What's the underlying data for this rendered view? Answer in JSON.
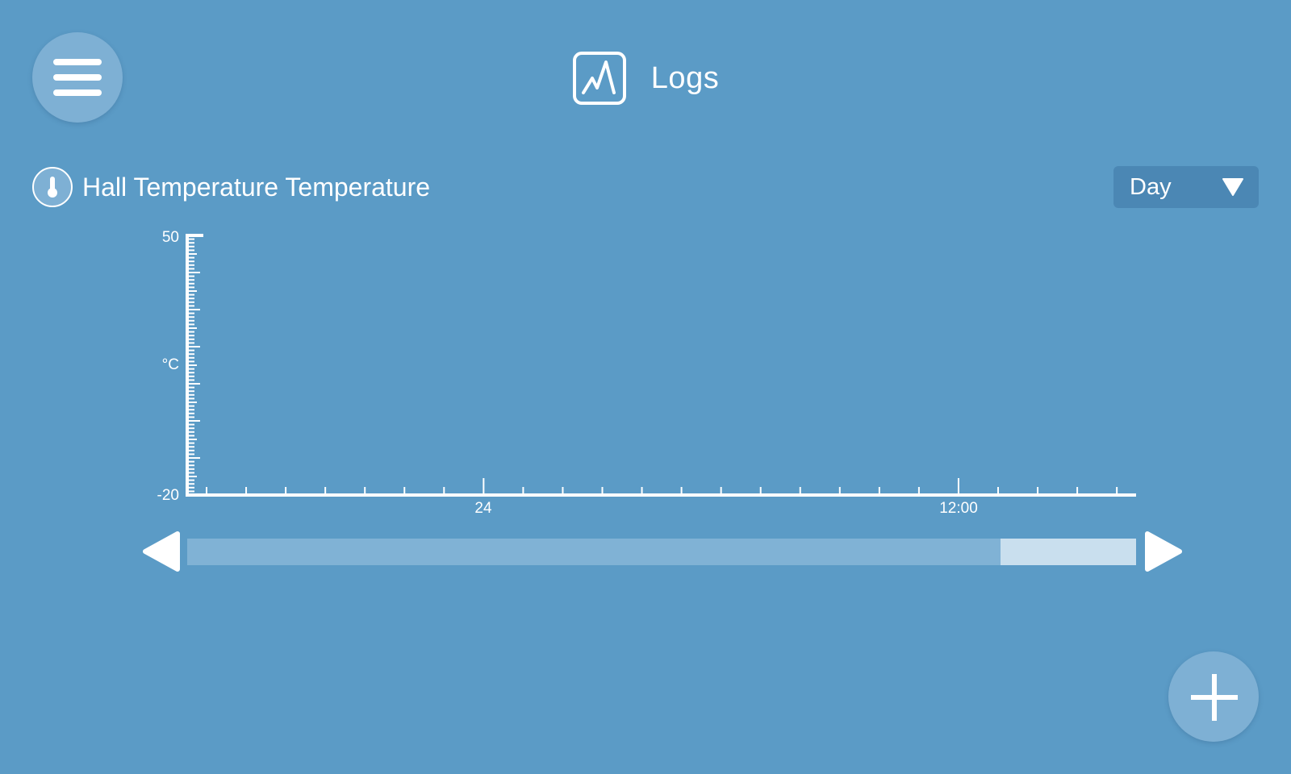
{
  "header": {
    "icon": "chart-log-icon",
    "title": "Logs"
  },
  "menu_button": {
    "icon": "hamburger-menu-icon"
  },
  "sensor": {
    "icon": "thermometer-icon",
    "name": "Hall Temperature Temperature"
  },
  "range_select": {
    "value": "Day",
    "icon": "caret-down-icon"
  },
  "chart_data": {
    "type": "line",
    "title": "",
    "ylabel": "°C",
    "ylim": [
      -20,
      50
    ],
    "y_tick_labels": [
      "50",
      "-20"
    ],
    "x_tick_labels": [
      "24",
      "12:00"
    ],
    "series": [],
    "grid": false
  },
  "scroll": {
    "left_icon": "arrow-left-icon",
    "right_icon": "arrow-right-icon",
    "thumb_start": 0.857,
    "thumb_end": 1.0
  },
  "add_button": {
    "icon": "plus-icon"
  },
  "colors": {
    "background": "#5b9bc6",
    "button": "#7eb0d4",
    "select": "#4b87b4",
    "scroll_track": "#80b2d5",
    "scroll_thumb": "#c9dfee"
  }
}
